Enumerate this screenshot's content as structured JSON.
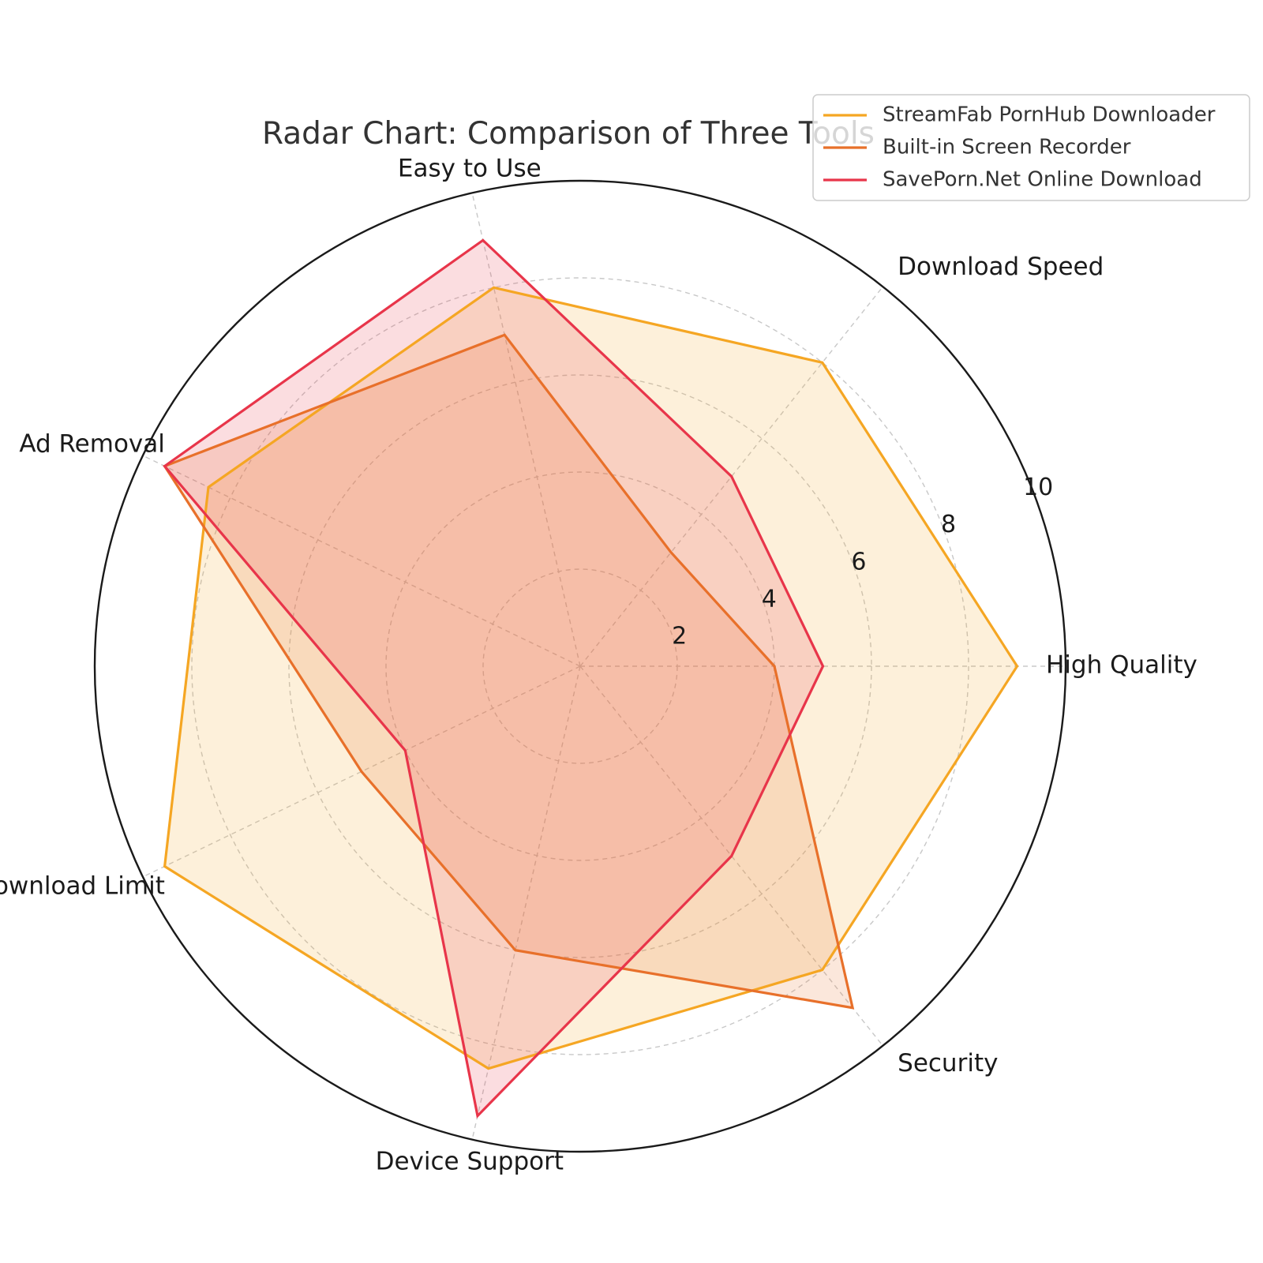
{
  "chart_data": {
    "type": "radar",
    "title": "Radar Chart: Comparison of Three Tools",
    "categories": [
      "High Quality",
      "Download Speed",
      "Easy to Use",
      "Ad Removal",
      "Download Limit",
      "Device Support",
      "Security"
    ],
    "rlim": [
      0,
      10
    ],
    "rticks": [
      "2",
      "4",
      "6",
      "8",
      "10"
    ],
    "grid": true,
    "legend_position": "top-right",
    "series": [
      {
        "name": "StreamFab PornHub Downloader",
        "color": "#F5A623",
        "values": [
          9,
          8,
          8,
          8.5,
          9.5,
          8.5,
          8
        ]
      },
      {
        "name": "Built-in Screen Recorder",
        "color": "#E8702A",
        "values": [
          4,
          3,
          7,
          9.5,
          5,
          6,
          9
        ]
      },
      {
        "name": "SavePorn.Net Online Download",
        "color": "#E8354A",
        "values": [
          5,
          5,
          9,
          9.5,
          4,
          9.5,
          5
        ]
      }
    ]
  }
}
